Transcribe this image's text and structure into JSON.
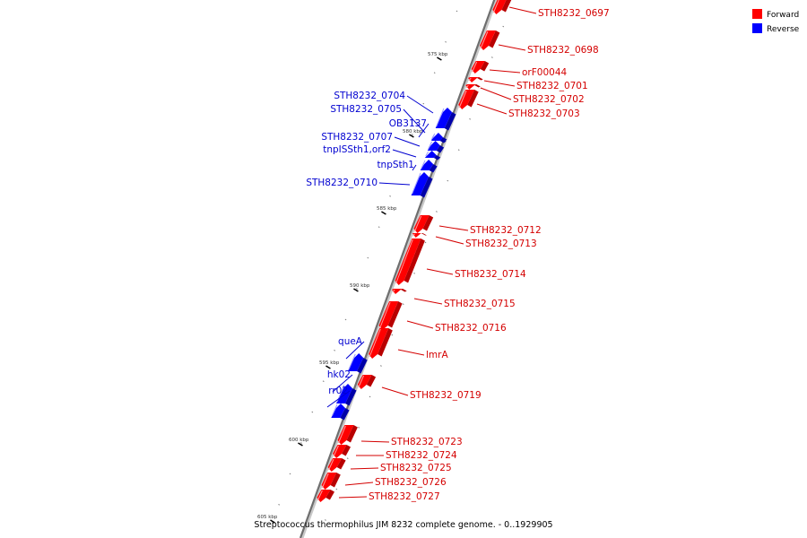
{
  "legend": [
    {
      "name": "Forward",
      "color": "#ff0000"
    },
    {
      "name": "Reverse",
      "color": "#0000ff"
    }
  ],
  "caption": "Streptococcus thermophilus JIM 8232 complete genome. - 0..1929905",
  "ticks": [
    "575 kbp",
    "580 kbp",
    "585 kbp",
    "590 kbp",
    "595 kbp",
    "600 kbp",
    "605 kbp"
  ],
  "genes": [
    {
      "label": "STH8232_0697",
      "strand": "forward"
    },
    {
      "label": "STH8232_0698",
      "strand": "forward"
    },
    {
      "label": "orF00044",
      "strand": "forward"
    },
    {
      "label": "STH8232_0701",
      "strand": "forward"
    },
    {
      "label": "STH8232_0702",
      "strand": "forward"
    },
    {
      "label": "STH8232_0703",
      "strand": "forward"
    },
    {
      "label": "STH8232_0704",
      "strand": "reverse"
    },
    {
      "label": "STH8232_0705",
      "strand": "reverse"
    },
    {
      "label": "OB3137",
      "strand": "reverse"
    },
    {
      "label": "STH8232_0707",
      "strand": "reverse"
    },
    {
      "label": "tnpISSth1,orf2",
      "strand": "reverse"
    },
    {
      "label": "tnpSth1",
      "strand": "reverse"
    },
    {
      "label": "STH8232_0710",
      "strand": "reverse"
    },
    {
      "label": "STH8232_0712",
      "strand": "forward"
    },
    {
      "label": "STH8232_0713",
      "strand": "forward"
    },
    {
      "label": "STH8232_0714",
      "strand": "forward"
    },
    {
      "label": "STH8232_0715",
      "strand": "forward"
    },
    {
      "label": "STH8232_0716",
      "strand": "forward"
    },
    {
      "label": "lmrA",
      "strand": "forward"
    },
    {
      "label": "queA",
      "strand": "reverse"
    },
    {
      "label": "STH8232_0719",
      "strand": "forward"
    },
    {
      "label": "hk02",
      "strand": "reverse"
    },
    {
      "label": "rr02",
      "strand": "reverse"
    },
    {
      "label": "STH8232_0723",
      "strand": "forward"
    },
    {
      "label": "STH8232_0724",
      "strand": "forward"
    },
    {
      "label": "STH8232_0725",
      "strand": "forward"
    },
    {
      "label": "STH8232_0726",
      "strand": "forward"
    },
    {
      "label": "STH8232_0727",
      "strand": "forward"
    }
  ]
}
